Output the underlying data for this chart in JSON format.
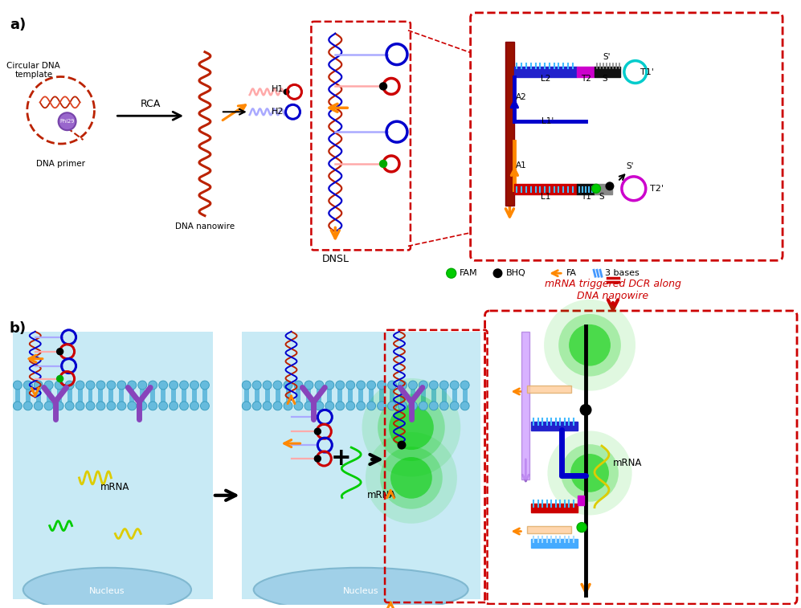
{
  "title_a": "a)",
  "title_b": "b)",
  "bg_color": "#ffffff",
  "legend_fam_color": "#00aa00",
  "legend_bhq_color": "#000000",
  "legend_fa_color": "#ff8800",
  "legend_3bases_color": "#4499ff",
  "red_dashed_color": "#cc0000",
  "orange_arrow_color": "#ff8800",
  "blue_color": "#0000cc",
  "red_color": "#cc0000",
  "cyan_color": "#00cccc",
  "magenta_color": "#cc00cc",
  "text_rca": "RCA",
  "text_h2": "H2",
  "text_h1": "H1",
  "text_dnsl": "DNSL",
  "text_dna_nanowire": "DNA nanowire",
  "text_circular": "Circular DNA\ntemplate",
  "text_phi29": "Phi29",
  "text_dna_primer": "DNA primer",
  "text_mrna_triggered": "mRNA triggered DCR along\nDNA nanowire",
  "text_nucleus": "Nucleus",
  "text_mrna": "mRNA",
  "text_fam": "FAM",
  "text_bhq": "BHQ",
  "text_fa": "FA",
  "text_3bases": "3 bases"
}
